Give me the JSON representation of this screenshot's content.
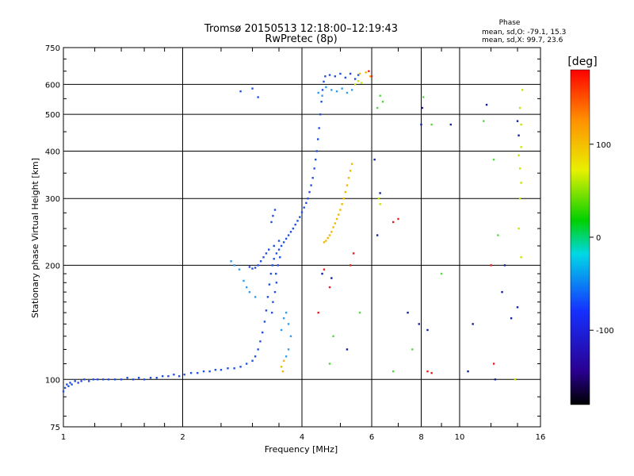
{
  "chart_data": {
    "type": "scatter",
    "title": "Tromsø 20150513 12:18:00–12:19:43",
    "subtitle": "RwPretec (8p)",
    "xlabel": "Frequency [MHz]",
    "ylabel": "Stationary phase Virtual Height [km]",
    "x_scale": "log",
    "y_scale": "log",
    "xlim": [
      1,
      16
    ],
    "ylim": [
      75,
      750
    ],
    "x_ticks": [
      1,
      2,
      4,
      6,
      8,
      10,
      16
    ],
    "x_tick_labels": [
      "1",
      "2",
      "4",
      "6",
      "8",
      "10",
      "16"
    ],
    "y_ticks": [
      75,
      100,
      200,
      300,
      400,
      500,
      600,
      750
    ],
    "y_tick_labels": [
      "75",
      "100",
      "200",
      "300",
      "400",
      "500",
      "600",
      "750"
    ],
    "grid": true,
    "phase_info": {
      "title": "Phase",
      "line_o": "mean, sd,O: -79.1, 15.3",
      "line_x": "mean, sd,X:  99.7, 23.6"
    },
    "colorbar": {
      "label": "[deg]",
      "range": [
        -180,
        180
      ],
      "ticks": [
        100,
        0,
        -100
      ],
      "tick_labels": [
        "100",
        "0",
        "-100"
      ]
    },
    "series": [
      {
        "mode": "O",
        "phase_deg": -110,
        "color": "#1e50e6",
        "points": [
          [
            1.0,
            93
          ],
          [
            1.01,
            95
          ],
          [
            1.02,
            97
          ],
          [
            1.03,
            96
          ],
          [
            1.04,
            98
          ],
          [
            1.05,
            97
          ],
          [
            1.07,
            99
          ],
          [
            1.09,
            98
          ],
          [
            1.11,
            99
          ],
          [
            1.13,
            100
          ],
          [
            1.16,
            99
          ],
          [
            1.19,
            100
          ],
          [
            1.22,
            100
          ],
          [
            1.26,
            100
          ],
          [
            1.3,
            100
          ],
          [
            1.35,
            100
          ],
          [
            1.4,
            100
          ],
          [
            1.45,
            101
          ],
          [
            1.5,
            100
          ],
          [
            1.55,
            101
          ],
          [
            1.6,
            100
          ],
          [
            1.66,
            101
          ],
          [
            1.72,
            101
          ],
          [
            1.78,
            102
          ],
          [
            1.84,
            102
          ],
          [
            1.9,
            103
          ],
          [
            1.96,
            102
          ],
          [
            2.02,
            103
          ],
          [
            2.1,
            104
          ],
          [
            2.18,
            104
          ],
          [
            2.26,
            105
          ],
          [
            2.34,
            105
          ],
          [
            2.42,
            106
          ],
          [
            2.5,
            106
          ],
          [
            2.6,
            107
          ],
          [
            2.7,
            107
          ],
          [
            2.8,
            108
          ],
          [
            2.9,
            110
          ],
          [
            3.0,
            112
          ],
          [
            3.05,
            115
          ],
          [
            3.1,
            120
          ],
          [
            3.14,
            126
          ],
          [
            3.18,
            133
          ],
          [
            3.22,
            142
          ],
          [
            3.25,
            152
          ],
          [
            3.28,
            165
          ],
          [
            3.31,
            178
          ],
          [
            3.34,
            190
          ],
          [
            3.37,
            200
          ],
          [
            3.4,
            208
          ],
          [
            3.45,
            215
          ],
          [
            3.5,
            220
          ],
          [
            3.55,
            225
          ],
          [
            3.6,
            230
          ],
          [
            3.65,
            235
          ],
          [
            3.7,
            240
          ],
          [
            3.75,
            245
          ],
          [
            3.8,
            250
          ],
          [
            3.85,
            256
          ],
          [
            3.9,
            262
          ],
          [
            3.95,
            268
          ],
          [
            4.0,
            276
          ],
          [
            4.05,
            284
          ],
          [
            4.1,
            292
          ],
          [
            4.14,
            300
          ],
          [
            4.18,
            312
          ],
          [
            4.22,
            325
          ],
          [
            4.26,
            340
          ],
          [
            4.3,
            360
          ],
          [
            4.33,
            380
          ],
          [
            4.36,
            400
          ],
          [
            4.39,
            430
          ],
          [
            4.42,
            460
          ],
          [
            4.45,
            500
          ],
          [
            4.48,
            540
          ],
          [
            4.51,
            580
          ],
          [
            4.54,
            610
          ],
          [
            4.58,
            630
          ],
          [
            4.7,
            635
          ],
          [
            4.85,
            630
          ],
          [
            5.0,
            640
          ],
          [
            5.15,
            625
          ],
          [
            5.3,
            640
          ],
          [
            5.45,
            620
          ],
          [
            5.55,
            635
          ],
          [
            2.95,
            198
          ],
          [
            3.0,
            196
          ],
          [
            3.05,
            197
          ],
          [
            3.1,
            200
          ],
          [
            3.15,
            205
          ],
          [
            3.2,
            210
          ],
          [
            3.25,
            215
          ],
          [
            3.3,
            220
          ],
          [
            3.4,
            225
          ],
          [
            3.5,
            232
          ],
          [
            3.45,
            180
          ],
          [
            3.42,
            170
          ],
          [
            3.38,
            160
          ],
          [
            3.36,
            150
          ],
          [
            3.44,
            190
          ],
          [
            3.48,
            200
          ],
          [
            3.52,
            210
          ],
          [
            3.35,
            260
          ],
          [
            3.38,
            270
          ],
          [
            3.42,
            280
          ],
          [
            2.8,
            575
          ],
          [
            3.0,
            585
          ],
          [
            3.1,
            555
          ]
        ]
      },
      {
        "mode": "O",
        "phase_deg": -85,
        "color": "#2e9cf0",
        "points": [
          [
            2.65,
            205
          ],
          [
            2.7,
            200
          ],
          [
            2.78,
            195
          ],
          [
            2.85,
            182
          ],
          [
            2.9,
            175
          ],
          [
            2.95,
            170
          ],
          [
            3.05,
            165
          ],
          [
            3.6,
            145
          ],
          [
            3.65,
            150
          ],
          [
            3.7,
            140
          ],
          [
            3.75,
            130
          ],
          [
            3.7,
            120
          ],
          [
            3.65,
            115
          ],
          [
            3.55,
            135
          ],
          [
            4.6,
            590
          ],
          [
            4.75,
            580
          ],
          [
            4.9,
            575
          ],
          [
            5.05,
            585
          ],
          [
            5.2,
            570
          ],
          [
            5.35,
            580
          ],
          [
            4.4,
            570
          ],
          [
            4.5,
            560
          ]
        ]
      },
      {
        "mode": "X",
        "phase_deg": 100,
        "color": "#f0b800",
        "points": [
          [
            4.55,
            230
          ],
          [
            4.6,
            232
          ],
          [
            4.65,
            236
          ],
          [
            4.7,
            240
          ],
          [
            4.75,
            245
          ],
          [
            4.8,
            252
          ],
          [
            4.85,
            258
          ],
          [
            4.9,
            265
          ],
          [
            4.95,
            272
          ],
          [
            5.0,
            280
          ],
          [
            5.05,
            290
          ],
          [
            5.1,
            300
          ],
          [
            5.15,
            312
          ],
          [
            5.2,
            325
          ],
          [
            5.25,
            340
          ],
          [
            5.3,
            355
          ],
          [
            5.35,
            370
          ],
          [
            5.6,
            640
          ],
          [
            5.8,
            645
          ],
          [
            5.95,
            630
          ],
          [
            3.55,
            108
          ],
          [
            3.6,
            112
          ],
          [
            3.58,
            105
          ]
        ]
      },
      {
        "mode": "X",
        "phase_deg": 70,
        "color": "#c8e600",
        "points": [
          [
            5.45,
            600
          ],
          [
            5.55,
            612
          ],
          [
            5.65,
            605
          ],
          [
            6.25,
            300
          ],
          [
            6.3,
            290
          ],
          [
            14.2,
            520
          ],
          [
            14.3,
            470
          ],
          [
            14.2,
            360
          ],
          [
            14.3,
            330
          ],
          [
            14.2,
            300
          ],
          [
            14.1,
            250
          ],
          [
            14.3,
            210
          ],
          [
            13.8,
            100
          ],
          [
            14.3,
            410
          ],
          [
            14.1,
            390
          ],
          [
            14.4,
            580
          ]
        ]
      },
      {
        "mode": "X",
        "phase_deg": 45,
        "color": "#50dc3c",
        "points": [
          [
            6.2,
            520
          ],
          [
            6.4,
            540
          ],
          [
            6.3,
            560
          ],
          [
            8.1,
            555
          ],
          [
            8.5,
            470
          ],
          [
            9.0,
            190
          ],
          [
            11.5,
            480
          ],
          [
            12.2,
            380
          ],
          [
            12.5,
            240
          ],
          [
            7.6,
            120
          ],
          [
            6.8,
            105
          ],
          [
            4.7,
            110
          ],
          [
            5.6,
            150
          ],
          [
            4.8,
            130
          ]
        ]
      },
      {
        "mode": "scattered",
        "phase_deg": -130,
        "color": "#1020a0",
        "points": [
          [
            7.4,
            150
          ],
          [
            7.9,
            140
          ],
          [
            8.3,
            135
          ],
          [
            8.0,
            470
          ],
          [
            8.05,
            520
          ],
          [
            10.5,
            105
          ],
          [
            10.8,
            140
          ],
          [
            12.8,
            170
          ],
          [
            13.0,
            200
          ],
          [
            14.0,
            480
          ],
          [
            14.1,
            440
          ],
          [
            5.2,
            120
          ],
          [
            4.5,
            190
          ],
          [
            4.75,
            185
          ],
          [
            6.2,
            240
          ],
          [
            6.3,
            310
          ],
          [
            6.1,
            380
          ],
          [
            9.5,
            470
          ],
          [
            11.7,
            530
          ],
          [
            12.3,
            100
          ],
          [
            13.5,
            145
          ],
          [
            14.0,
            155
          ]
        ]
      },
      {
        "mode": "scattered",
        "phase_deg": 150,
        "color": "#e61e1e",
        "points": [
          [
            4.4,
            150
          ],
          [
            4.55,
            195
          ],
          [
            4.7,
            175
          ],
          [
            5.3,
            200
          ],
          [
            5.4,
            215
          ],
          [
            6.8,
            260
          ],
          [
            7.0,
            265
          ],
          [
            12.0,
            200
          ],
          [
            12.2,
            110
          ],
          [
            8.3,
            105
          ],
          [
            8.5,
            104
          ],
          [
            6.0,
            630
          ],
          [
            5.9,
            650
          ]
        ]
      }
    ]
  }
}
